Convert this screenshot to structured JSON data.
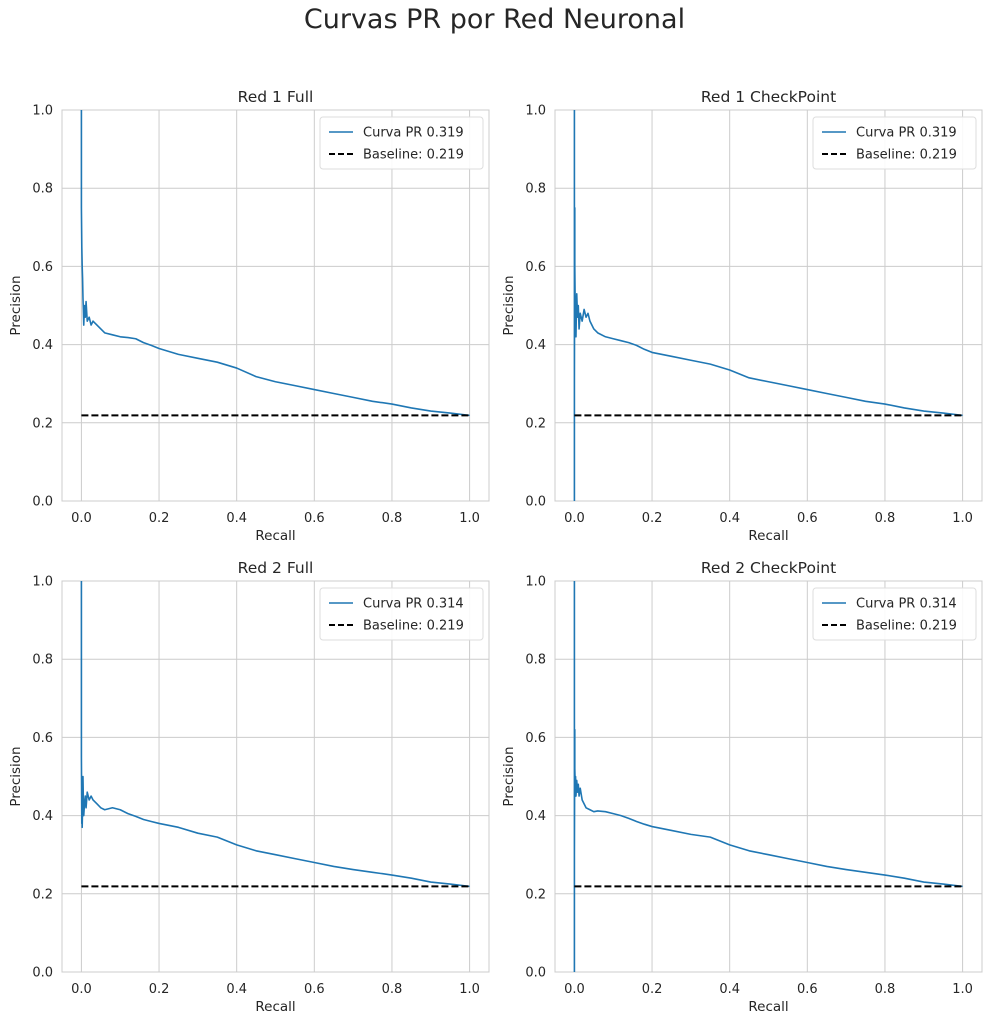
{
  "figure": {
    "suptitle": "Curvas PR por Red Neuronal"
  },
  "colors": {
    "pr_curve": "#1f77b4",
    "baseline": "#000000",
    "grid": "#cccccc",
    "axes_edge": "#cccccc",
    "text": "#262626"
  },
  "chart_data": [
    {
      "type": "line",
      "title": "Red 1 Full",
      "xlabel": "Recall",
      "ylabel": "Precision",
      "xlim": [
        -0.05,
        1.05
      ],
      "ylim": [
        0,
        1
      ],
      "xticks": [
        "0.0",
        "0.2",
        "0.4",
        "0.6",
        "0.8",
        "1.0"
      ],
      "yticks": [
        "0.0",
        "0.2",
        "0.4",
        "0.6",
        "0.8",
        "1.0"
      ],
      "grid": true,
      "legend_position": "top-right",
      "series": [
        {
          "name": "Curva PR 0.319",
          "style": "solid",
          "x": [
            0,
            0,
            0.001,
            0.002,
            0.003,
            0.004,
            0.005,
            0.006,
            0.008,
            0.01,
            0.012,
            0.015,
            0.02,
            0.025,
            0.03,
            0.04,
            0.05,
            0.06,
            0.08,
            0.1,
            0.12,
            0.14,
            0.16,
            0.18,
            0.2,
            0.25,
            0.3,
            0.35,
            0.4,
            0.45,
            0.5,
            0.55,
            0.6,
            0.65,
            0.7,
            0.75,
            0.8,
            0.85,
            0.9,
            0.95,
            1.0
          ],
          "y": [
            1.0,
            0.75,
            0.65,
            0.6,
            0.57,
            0.52,
            0.49,
            0.45,
            0.5,
            0.47,
            0.51,
            0.46,
            0.47,
            0.45,
            0.46,
            0.45,
            0.44,
            0.43,
            0.425,
            0.42,
            0.418,
            0.415,
            0.405,
            0.398,
            0.39,
            0.375,
            0.365,
            0.355,
            0.34,
            0.318,
            0.305,
            0.295,
            0.285,
            0.275,
            0.265,
            0.255,
            0.248,
            0.238,
            0.23,
            0.225,
            0.219
          ]
        },
        {
          "name": "Baseline: 0.219",
          "style": "dashed",
          "x": [
            0,
            1
          ],
          "y": [
            0.219,
            0.219
          ]
        }
      ]
    },
    {
      "type": "line",
      "title": "Red 1 CheckPoint",
      "xlabel": "Recall",
      "ylabel": "Precision",
      "xlim": [
        -0.05,
        1.05
      ],
      "ylim": [
        0,
        1
      ],
      "xticks": [
        "0.0",
        "0.2",
        "0.4",
        "0.6",
        "0.8",
        "1.0"
      ],
      "yticks": [
        "0.0",
        "0.2",
        "0.4",
        "0.6",
        "0.8",
        "1.0"
      ],
      "grid": true,
      "legend_position": "top-right",
      "series": [
        {
          "name": "Curva PR 0.319",
          "style": "solid",
          "x": [
            0,
            0,
            0,
            0.001,
            0.001,
            0.002,
            0.003,
            0.004,
            0.005,
            0.006,
            0.008,
            0.01,
            0.012,
            0.015,
            0.02,
            0.025,
            0.03,
            0.035,
            0.04,
            0.05,
            0.06,
            0.08,
            0.1,
            0.12,
            0.14,
            0.16,
            0.18,
            0.2,
            0.25,
            0.3,
            0.35,
            0.4,
            0.45,
            0.5,
            0.55,
            0.6,
            0.65,
            0.7,
            0.75,
            0.8,
            0.85,
            0.9,
            0.95,
            1.0
          ],
          "y": [
            1.0,
            0.0,
            0.3,
            0.75,
            0.6,
            0.5,
            0.47,
            0.42,
            0.48,
            0.53,
            0.47,
            0.5,
            0.44,
            0.48,
            0.46,
            0.49,
            0.47,
            0.48,
            0.46,
            0.44,
            0.43,
            0.42,
            0.415,
            0.41,
            0.405,
            0.398,
            0.388,
            0.38,
            0.37,
            0.36,
            0.35,
            0.335,
            0.315,
            0.305,
            0.295,
            0.285,
            0.275,
            0.265,
            0.255,
            0.248,
            0.238,
            0.23,
            0.225,
            0.219
          ]
        },
        {
          "name": "Baseline: 0.219",
          "style": "dashed",
          "x": [
            0,
            1
          ],
          "y": [
            0.219,
            0.219
          ]
        }
      ]
    },
    {
      "type": "line",
      "title": "Red 2 Full",
      "xlabel": "Recall",
      "ylabel": "Precision",
      "xlim": [
        -0.05,
        1.05
      ],
      "ylim": [
        0,
        1
      ],
      "xticks": [
        "0.0",
        "0.2",
        "0.4",
        "0.6",
        "0.8",
        "1.0"
      ],
      "yticks": [
        "0.0",
        "0.2",
        "0.4",
        "0.6",
        "0.8",
        "1.0"
      ],
      "grid": true,
      "legend_position": "top-right",
      "series": [
        {
          "name": "Curva PR 0.314",
          "style": "solid",
          "x": [
            0,
            0,
            0.001,
            0.002,
            0.002,
            0.003,
            0.004,
            0.005,
            0.006,
            0.008,
            0.01,
            0.012,
            0.015,
            0.02,
            0.025,
            0.03,
            0.04,
            0.05,
            0.06,
            0.08,
            0.1,
            0.12,
            0.14,
            0.16,
            0.18,
            0.2,
            0.25,
            0.3,
            0.35,
            0.4,
            0.45,
            0.5,
            0.55,
            0.6,
            0.65,
            0.7,
            0.75,
            0.8,
            0.85,
            0.9,
            0.95,
            1.0
          ],
          "y": [
            1.0,
            0.55,
            0.38,
            0.45,
            0.37,
            0.42,
            0.5,
            0.44,
            0.4,
            0.43,
            0.45,
            0.42,
            0.46,
            0.44,
            0.45,
            0.44,
            0.43,
            0.42,
            0.415,
            0.42,
            0.415,
            0.405,
            0.398,
            0.39,
            0.385,
            0.38,
            0.37,
            0.355,
            0.345,
            0.325,
            0.31,
            0.3,
            0.29,
            0.28,
            0.27,
            0.262,
            0.255,
            0.248,
            0.24,
            0.23,
            0.225,
            0.219
          ]
        },
        {
          "name": "Baseline: 0.219",
          "style": "dashed",
          "x": [
            0,
            1
          ],
          "y": [
            0.219,
            0.219
          ]
        }
      ]
    },
    {
      "type": "line",
      "title": "Red 2 CheckPoint",
      "xlabel": "Recall",
      "ylabel": "Precision",
      "xlim": [
        -0.05,
        1.05
      ],
      "ylim": [
        0,
        1
      ],
      "xticks": [
        "0.0",
        "0.2",
        "0.4",
        "0.6",
        "0.8",
        "1.0"
      ],
      "yticks": [
        "0.0",
        "0.2",
        "0.4",
        "0.6",
        "0.8",
        "1.0"
      ],
      "grid": true,
      "legend_position": "top-right",
      "series": [
        {
          "name": "Curva PR 0.314",
          "style": "solid",
          "x": [
            0,
            0,
            0,
            0.001,
            0.001,
            0.002,
            0.003,
            0.004,
            0.005,
            0.006,
            0.008,
            0.01,
            0.012,
            0.015,
            0.02,
            0.025,
            0.03,
            0.04,
            0.05,
            0.06,
            0.08,
            0.1,
            0.12,
            0.14,
            0.16,
            0.18,
            0.2,
            0.25,
            0.3,
            0.35,
            0.4,
            0.45,
            0.5,
            0.55,
            0.6,
            0.65,
            0.7,
            0.75,
            0.8,
            0.85,
            0.9,
            0.95,
            1.0
          ],
          "y": [
            1.0,
            0.0,
            0.3,
            0.62,
            0.52,
            0.48,
            0.5,
            0.45,
            0.47,
            0.49,
            0.46,
            0.48,
            0.45,
            0.47,
            0.44,
            0.43,
            0.42,
            0.415,
            0.41,
            0.412,
            0.41,
            0.405,
            0.4,
            0.393,
            0.385,
            0.378,
            0.372,
            0.362,
            0.352,
            0.345,
            0.325,
            0.31,
            0.3,
            0.29,
            0.28,
            0.27,
            0.262,
            0.255,
            0.248,
            0.24,
            0.23,
            0.225,
            0.219
          ]
        },
        {
          "name": "Baseline: 0.219",
          "style": "dashed",
          "x": [
            0,
            1
          ],
          "y": [
            0.219,
            0.219
          ]
        }
      ]
    }
  ]
}
